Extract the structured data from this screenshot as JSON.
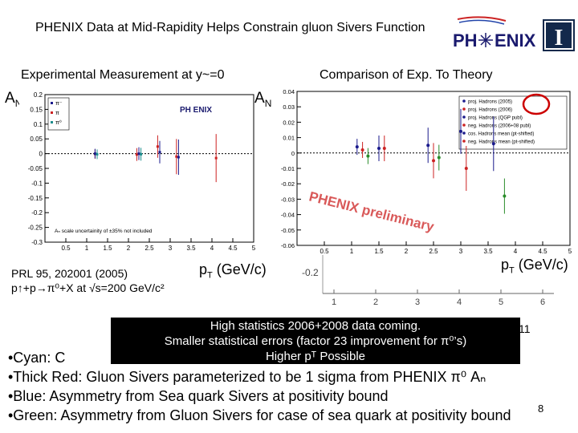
{
  "title": "PHENIX Data at Mid-Rapidity Helps Constrain gluon Sivers Function",
  "logo": {
    "text_left": "PH",
    "text_right": "ENIX",
    "emblem": "I"
  },
  "left_panel": {
    "heading": "Experimental Measurement at y~=0",
    "ylabel": "A",
    "ylabel_sub": "N",
    "xlabel": "p",
    "xlabel_sub": "T",
    "xlabel_unit": " (GeV/c)",
    "plot_logo": "PH ENIX",
    "note": "Aₙ scale uncertainity of ±35% not included",
    "legend": [
      "π⁻",
      "π",
      "π⁰"
    ],
    "citation": "PRL 95, 202001 (2005)",
    "reaction": "p↑+p→π⁰+X at √s=200 GeV/c²"
  },
  "right_panel": {
    "heading": "Comparison of Exp. To Theory",
    "ylabel": "A",
    "ylabel_sub": "N",
    "xlabel": "p",
    "xlabel_sub": "T",
    "xlabel_unit": " (GeV/c)",
    "watermark": "PHENIX preliminary",
    "legend": [
      "proj. Hadrons (2005)",
      "proj. Hadrons (2006)",
      "proj. Hadrons (QGP publ)",
      "neg. Hadrons (2006+08 publ)",
      "cos. Hadrons mean (pt-shifted)",
      "neg. Hadrons mean (pt-shifted)"
    ],
    "lower_tick": "-0.2",
    "lower_x_ticks": [
      "1",
      "2",
      "3",
      "4",
      "5",
      "6"
    ],
    "stray_label": "11"
  },
  "callout": {
    "line1": "High statistics 2006+2008 data coming.",
    "line2": "Smaller statistical errors (factor 23 improvement for π⁰’s)",
    "line3": "Higher pᵀ Possible"
  },
  "bullets": {
    "cyan_partial": "•Cyan: C",
    "thick_red": "•Thick Red: Gluon Sivers parameterized to be 1 sigma from PHENIX π⁰ Aₙ",
    "blue": "•Blue: Asymmetry from Sea quark Sivers at positivity bound",
    "green": "•Green: Asymmetry from Gluon Sivers for case of sea quark at positivity bound"
  },
  "page_number": "8",
  "chart_data": [
    {
      "type": "scatter",
      "title": "Experimental Measurement at y~=0",
      "xlabel": "pT (GeV/c)",
      "ylabel": "AN",
      "xlim": [
        0,
        5
      ],
      "ylim": [
        -0.3,
        0.2
      ],
      "x_ticks": [
        0.5,
        1,
        1.5,
        2,
        2.5,
        3,
        3.5,
        4,
        4.5,
        5
      ],
      "y_ticks": [
        -0.3,
        -0.25,
        -0.2,
        -0.15,
        -0.1,
        -0.05,
        0,
        0.05,
        0.1,
        0.15,
        0.2
      ],
      "series": [
        {
          "name": "π⁰",
          "x": [
            1.2,
            2.2,
            2.7,
            3.15,
            4.1
          ],
          "y": [
            -0.001,
            -0.003,
            0.024,
            -0.01,
            -0.015
          ]
        },
        {
          "name": "π",
          "x": [
            1.2,
            2.25,
            2.75,
            3.2
          ],
          "y": [
            0.0,
            0.0,
            0.005,
            -0.012
          ]
        },
        {
          "name": "π⁻",
          "x": [
            1.25,
            2.3
          ],
          "y": [
            -0.002,
            -0.002
          ]
        }
      ]
    },
    {
      "type": "scatter",
      "title": "Comparison of Exp. To Theory",
      "xlabel": "pT (GeV/c)",
      "ylabel": "AN",
      "xlim": [
        0,
        5
      ],
      "ylim": [
        -0.06,
        0.04
      ],
      "x_ticks": [
        0.5,
        1,
        1.5,
        2,
        2.5,
        3,
        3.5,
        4,
        4.5,
        5
      ],
      "y_ticks": [
        -0.06,
        -0.05,
        -0.04,
        -0.03,
        -0.02,
        -0.01,
        0,
        0.01,
        0.02,
        0.03,
        0.04
      ],
      "series": [
        {
          "name": "proj. Hadrons (2005)",
          "x": [
            1.1,
            1.5,
            2.4,
            3.0,
            3.6
          ],
          "y": [
            0.004,
            0.003,
            0.005,
            0.014,
            0.006
          ]
        },
        {
          "name": "proj. Hadrons (2006)",
          "x": [
            1.2,
            1.6,
            2.5,
            3.1
          ],
          "y": [
            0.002,
            0.003,
            -0.005,
            -0.01
          ]
        },
        {
          "name": "neg. Hadrons (2006+08 publ)",
          "x": [
            1.3,
            2.6,
            3.8
          ],
          "y": [
            -0.002,
            -0.003,
            -0.028
          ]
        }
      ]
    }
  ]
}
